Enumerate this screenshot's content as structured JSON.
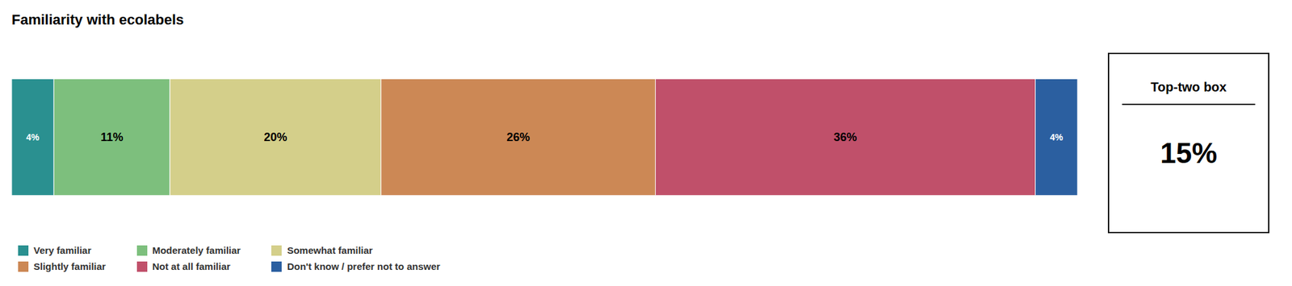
{
  "chart_data": {
    "type": "bar",
    "title": "Familiarity with ecolabels",
    "orientation": "horizontal",
    "stacked": true,
    "categories": [
      null
    ],
    "series": [
      {
        "name": "Very familiar",
        "color": "#2a9090",
        "values": [
          4
        ],
        "value_labels": [
          "4%"
        ]
      },
      {
        "name": "Moderately familiar",
        "color": "#7dbf7d",
        "values": [
          11
        ],
        "value_labels": [
          "11%"
        ]
      },
      {
        "name": "Somewhat familiar",
        "color": "#d4cf8a",
        "values": [
          20
        ],
        "value_labels": [
          "20%"
        ]
      },
      {
        "name": "Slightly familiar",
        "color": "#cc8855",
        "values": [
          26
        ],
        "value_labels": [
          "26%"
        ]
      },
      {
        "name": "Not at all familiar",
        "color": "#c0506a",
        "values": [
          36
        ],
        "value_labels": [
          "36%"
        ]
      },
      {
        "name": "Don't know / prefer not to answer",
        "color": "#2b5fa0",
        "values": [
          4
        ],
        "value_labels": [
          "4%"
        ]
      }
    ],
    "xlim": [
      0,
      101
    ],
    "data_labels": true,
    "tick_labels": false,
    "grid": false,
    "legend": "bottom",
    "annotations": [
      "Top-two box",
      "15%"
    ]
  }
}
